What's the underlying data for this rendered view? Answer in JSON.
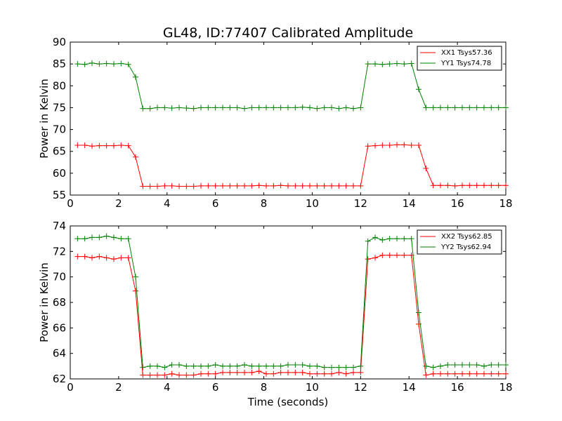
{
  "chart_data": [
    {
      "type": "line",
      "title": "GL48, ID:77407 Calibrated Amplitude",
      "xlabel": "",
      "ylabel": "Power in Kelvin",
      "xlim": [
        0,
        18
      ],
      "ylim": [
        55,
        90
      ],
      "xticks": [
        0,
        2,
        4,
        6,
        8,
        10,
        12,
        14,
        16,
        18
      ],
      "yticks": [
        55,
        60,
        65,
        70,
        75,
        80,
        85,
        90
      ],
      "grid": false,
      "legend": "top-right",
      "x": [
        0.3,
        0.6,
        0.9,
        1.2,
        1.5,
        1.8,
        2.1,
        2.4,
        2.7,
        3.0,
        3.3,
        3.6,
        3.9,
        4.2,
        4.5,
        4.8,
        5.1,
        5.4,
        5.7,
        6.0,
        6.3,
        6.6,
        6.9,
        7.2,
        7.5,
        7.8,
        8.1,
        8.4,
        8.7,
        9.0,
        9.3,
        9.6,
        9.9,
        10.2,
        10.5,
        10.8,
        11.1,
        11.4,
        11.7,
        12.0,
        12.3,
        12.6,
        12.9,
        13.2,
        13.5,
        13.8,
        14.1,
        14.4,
        14.7,
        15.0,
        15.3,
        15.6,
        15.9,
        16.2,
        16.5,
        16.8,
        17.1,
        17.4,
        17.7,
        18.0
      ],
      "series": [
        {
          "name": "XX1 Tsys57.36",
          "color": "#ff0000",
          "values": [
            66.4,
            66.4,
            66.2,
            66.3,
            66.3,
            66.3,
            66.4,
            66.3,
            63.7,
            57.0,
            57.0,
            57.0,
            57.1,
            57.1,
            57.0,
            57.0,
            57.0,
            57.1,
            57.1,
            57.1,
            57.1,
            57.1,
            57.1,
            57.1,
            57.1,
            57.2,
            57.1,
            57.1,
            57.2,
            57.1,
            57.1,
            57.1,
            57.1,
            57.1,
            57.1,
            57.1,
            57.1,
            57.1,
            57.1,
            57.1,
            66.2,
            66.3,
            66.4,
            66.4,
            66.5,
            66.5,
            66.4,
            66.4,
            61.1,
            57.2,
            57.2,
            57.2,
            57.1,
            57.2,
            57.2,
            57.2,
            57.2,
            57.2,
            57.2,
            57.2
          ]
        },
        {
          "name": "YY1 Tsys74.78",
          "color": "#008000",
          "values": [
            85.0,
            84.9,
            85.2,
            85.0,
            85.1,
            85.0,
            85.1,
            84.9,
            82.0,
            74.8,
            74.8,
            75.0,
            75.0,
            74.9,
            75.0,
            74.9,
            74.8,
            75.0,
            75.0,
            75.0,
            75.0,
            75.0,
            75.0,
            74.8,
            75.0,
            75.0,
            75.0,
            75.0,
            75.0,
            75.0,
            75.0,
            75.1,
            75.0,
            74.8,
            75.0,
            75.0,
            74.8,
            75.0,
            74.8,
            75.0,
            85.0,
            85.0,
            84.9,
            85.0,
            85.1,
            85.0,
            85.1,
            79.2,
            75.0,
            75.0,
            75.0,
            75.0,
            75.0,
            75.0,
            75.0,
            75.0,
            75.0,
            75.0,
            75.0,
            75.0
          ]
        }
      ]
    },
    {
      "type": "line",
      "title": "",
      "xlabel": "Time (seconds)",
      "ylabel": "Power in Kelvin",
      "xlim": [
        0,
        18
      ],
      "ylim": [
        62,
        74
      ],
      "xticks": [
        0,
        2,
        4,
        6,
        8,
        10,
        12,
        14,
        16,
        18
      ],
      "yticks": [
        62,
        64,
        66,
        68,
        70,
        72,
        74
      ],
      "grid": false,
      "legend": "top-right",
      "x": [
        0.3,
        0.6,
        0.9,
        1.2,
        1.5,
        1.8,
        2.1,
        2.4,
        2.7,
        3.0,
        3.3,
        3.6,
        3.9,
        4.2,
        4.5,
        4.8,
        5.1,
        5.4,
        5.7,
        6.0,
        6.3,
        6.6,
        6.9,
        7.2,
        7.5,
        7.8,
        8.1,
        8.4,
        8.7,
        9.0,
        9.3,
        9.6,
        9.9,
        10.2,
        10.5,
        10.8,
        11.1,
        11.4,
        11.7,
        12.0,
        12.3,
        12.6,
        12.9,
        13.2,
        13.5,
        13.8,
        14.1,
        14.4,
        14.7,
        15.0,
        15.3,
        15.6,
        15.9,
        16.2,
        16.5,
        16.8,
        17.1,
        17.4,
        17.7,
        18.0
      ],
      "series": [
        {
          "name": "XX2 Tsys62.85",
          "color": "#ff0000",
          "values": [
            71.6,
            71.6,
            71.5,
            71.6,
            71.5,
            71.4,
            71.5,
            71.5,
            68.9,
            62.3,
            62.3,
            62.3,
            62.3,
            62.4,
            62.3,
            62.3,
            62.3,
            62.4,
            62.4,
            62.4,
            62.5,
            62.5,
            62.5,
            62.5,
            62.5,
            62.6,
            62.4,
            62.4,
            62.5,
            62.5,
            62.5,
            62.5,
            62.4,
            62.4,
            62.4,
            62.4,
            62.5,
            62.4,
            62.5,
            62.5,
            71.4,
            71.5,
            71.7,
            71.7,
            71.7,
            71.7,
            71.7,
            66.3,
            62.3,
            62.4,
            62.4,
            62.4,
            62.4,
            62.4,
            62.4,
            62.4,
            62.4,
            62.4,
            62.4,
            62.4
          ]
        },
        {
          "name": "YY2 Tsys62.94",
          "color": "#008000",
          "values": [
            73.0,
            73.0,
            73.1,
            73.1,
            73.2,
            73.1,
            73.0,
            73.0,
            70.0,
            62.9,
            63.0,
            63.0,
            62.9,
            63.1,
            63.1,
            63.0,
            63.0,
            63.0,
            63.0,
            63.1,
            63.0,
            63.0,
            63.0,
            63.1,
            63.0,
            63.0,
            63.0,
            63.0,
            63.0,
            63.1,
            63.1,
            63.1,
            63.0,
            63.0,
            62.9,
            62.9,
            62.9,
            62.9,
            62.9,
            63.0,
            72.8,
            73.1,
            72.9,
            73.0,
            73.0,
            73.0,
            73.0,
            67.2,
            63.0,
            62.9,
            63.0,
            63.1,
            63.1,
            63.1,
            63.1,
            63.1,
            63.0,
            63.1,
            63.1,
            63.1
          ]
        }
      ]
    }
  ]
}
